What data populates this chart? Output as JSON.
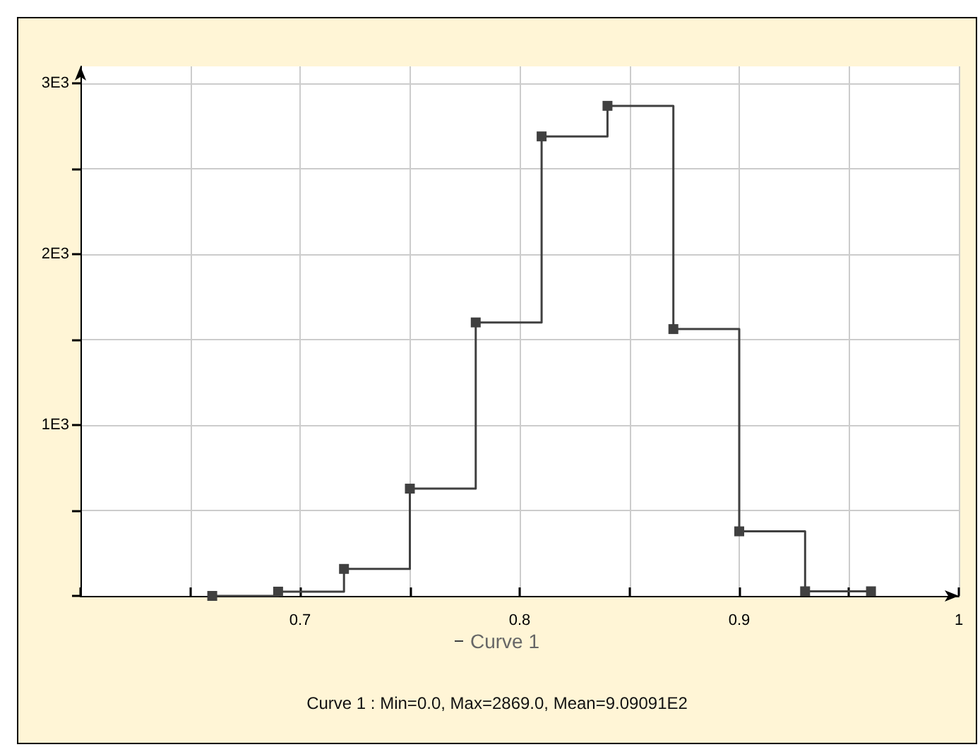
{
  "chart_data": {
    "type": "step",
    "x": [
      0.66,
      0.69,
      0.72,
      0.75,
      0.78,
      0.81,
      0.84,
      0.87,
      0.9,
      0.93,
      0.96
    ],
    "series": [
      {
        "name": "Curve 1",
        "color": "#404040",
        "values": [
          0,
          25,
          158,
          628,
          1601,
          2690,
          2869,
          1562,
          378,
          27,
          27
        ]
      }
    ],
    "xlim": [
      0.6,
      1
    ],
    "xticks": [
      {
        "value": 0.6,
        "label": null
      },
      {
        "value": 0.65,
        "label": null
      },
      0.7,
      {
        "value": 0.75,
        "label": null
      },
      0.8,
      {
        "value": 0.85,
        "label": null
      },
      0.9,
      {
        "value": 0.95,
        "label": null
      },
      1
    ],
    "ylim": [
      0,
      3100
    ],
    "yticks": [
      {
        "value": 0,
        "label": null
      },
      {
        "value": 500,
        "label": null
      },
      {
        "value": 1000,
        "label": "1E3"
      },
      {
        "value": 1500,
        "label": null
      },
      {
        "value": 2000,
        "label": "2E3"
      },
      {
        "value": 2500,
        "label": null
      },
      {
        "value": 3000,
        "label": "3E3"
      }
    ],
    "grid": true,
    "marker": "square",
    "line_style": "solid",
    "legend": "bottom",
    "annotations": [
      "Curve 1 : Min=0.0, Max=2869.0, Mean=9.09091E2"
    ]
  }
}
